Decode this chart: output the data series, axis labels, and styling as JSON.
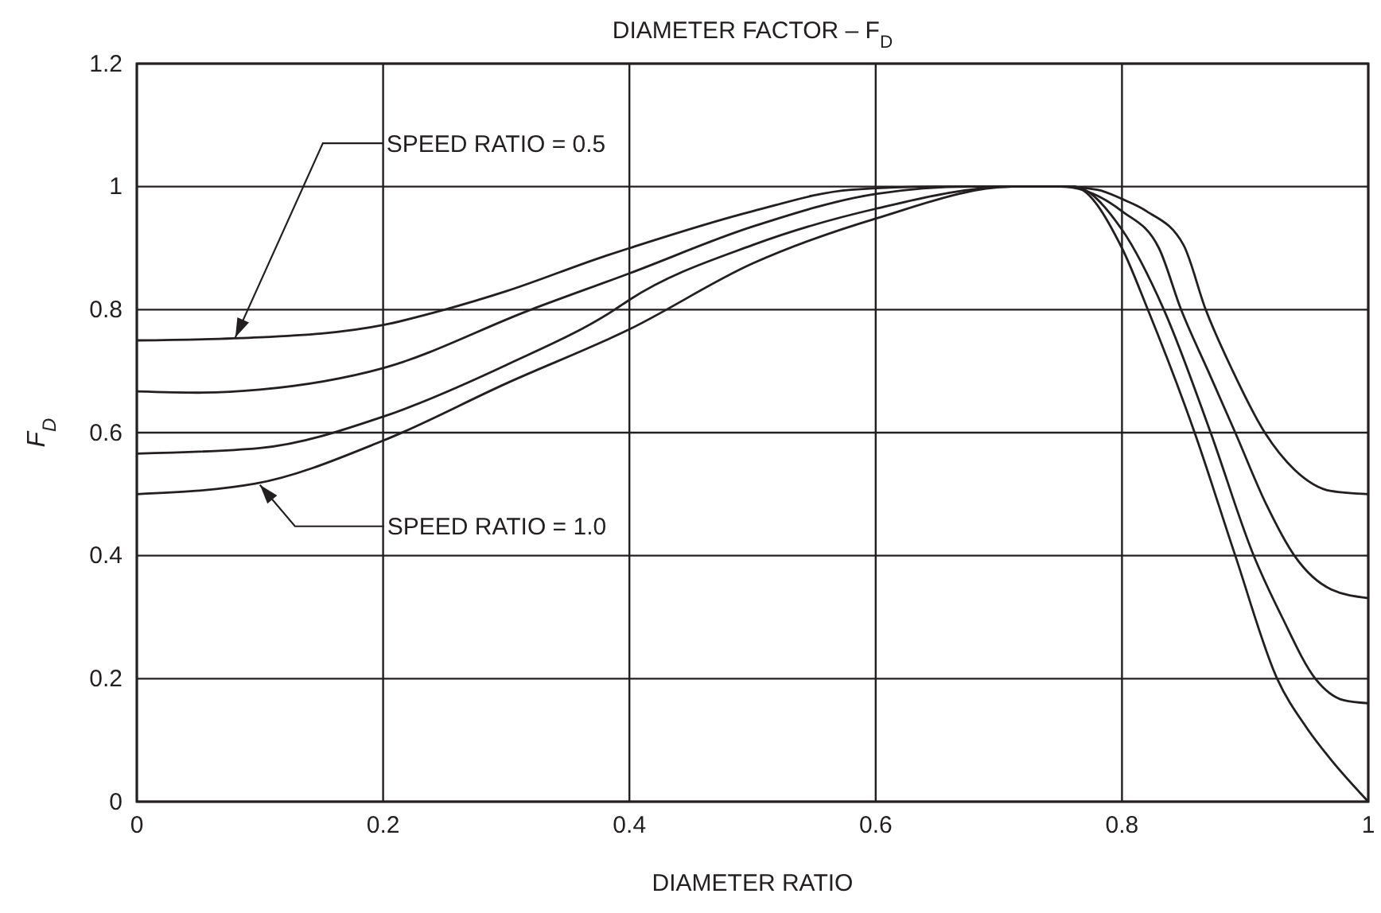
{
  "chart_data": {
    "type": "line",
    "title": "DIAMETER FACTOR – F$_{D}$",
    "xlabel": "DIAMETER RATIO",
    "ylabel": "F$_{D}$",
    "xlim": [
      0,
      1
    ],
    "xticks": [
      0,
      0.2,
      0.4,
      0.6,
      0.8,
      1
    ],
    "ylim": [
      0,
      1.2
    ],
    "yticks": [
      0,
      0.2,
      0.4,
      0.6,
      0.8,
      1,
      1.2
    ],
    "grid": true,
    "line_style": "solid",
    "series": [
      {
        "color": "#231f20",
        "x": [
          0,
          0.1,
          0.2,
          0.25,
          0.3,
          0.38,
          0.4,
          0.5,
          0.58,
          0.65,
          0.75,
          0.78,
          0.8,
          0.82,
          0.85,
          0.868,
          0.89,
          0.916,
          0.94,
          0.97,
          1
        ],
        "values": [
          0.75,
          0.755,
          0.775,
          0.8,
          0.83,
          0.887,
          0.9,
          0.96,
          0.995,
          1,
          1,
          0.995,
          0.98,
          0.96,
          0.905,
          0.8,
          0.7,
          0.6,
          0.54,
          0.505,
          0.5
        ]
      },
      {
        "color": "#231f20",
        "x": [
          0,
          0.05,
          0.1,
          0.2,
          0.32,
          0.4,
          0.5,
          0.6,
          0.677,
          0.75,
          0.8,
          0.83,
          0.848,
          0.87,
          0.892,
          0.917,
          0.94,
          0.97,
          1
        ],
        "values": [
          0.667,
          0.665,
          0.67,
          0.705,
          0.8,
          0.859,
          0.935,
          0.988,
          1,
          1,
          0.96,
          0.9,
          0.8,
          0.7,
          0.6,
          0.484,
          0.4,
          0.345,
          0.331
        ]
      },
      {
        "color": "#231f20",
        "x": [
          0,
          0.1,
          0.2,
          0.3,
          0.388,
          0.4,
          0.5,
          0.6,
          0.712,
          0.76,
          0.8,
          0.834,
          0.872,
          0.907,
          0.93,
          0.957,
          0.98,
          1
        ],
        "values": [
          0.566,
          0.575,
          0.626,
          0.71,
          0.8,
          0.816,
          0.905,
          0.964,
          1,
          1,
          0.93,
          0.8,
          0.6,
          0.4,
          0.3,
          0.2,
          0.165,
          0.16
        ]
      },
      {
        "color": "#231f20",
        "x": [
          0,
          0.096,
          0.2,
          0.3,
          0.4,
          0.5,
          0.6,
          0.712,
          0.76,
          0.8,
          0.821,
          0.859,
          0.892,
          0.926,
          0.95,
          0.969,
          1
        ],
        "values": [
          0.5,
          0.517,
          0.587,
          0.68,
          0.768,
          0.875,
          0.948,
          1,
          1,
          0.9,
          0.8,
          0.6,
          0.4,
          0.2,
          0.12,
          0.07,
          0
        ]
      }
    ],
    "annotations": [
      {
        "text": "SPEED RATIO = 0.5",
        "x": 0.08,
        "y": 0.755
      },
      {
        "text": "SPEED RATIO = 1.0",
        "x": 0.1,
        "y": 0.515
      }
    ]
  }
}
